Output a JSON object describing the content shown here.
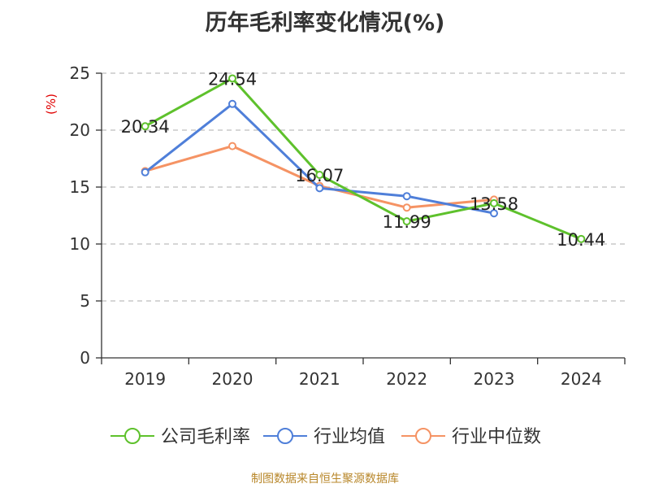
{
  "chart_data": {
    "type": "line",
    "title": "历年毛利率变化情况(%)",
    "ylabel": "(%)",
    "xlabel": "",
    "categories": [
      "2019",
      "2020",
      "2021",
      "2022",
      "2023",
      "2024"
    ],
    "ylim": [
      0,
      25
    ],
    "yticks": [
      0,
      5,
      10,
      15,
      20,
      25
    ],
    "grid": true,
    "legend_position": "bottom",
    "series": [
      {
        "name": "公司毛利率",
        "color": "#5ec12c",
        "values": [
          20.34,
          24.54,
          16.07,
          11.99,
          13.58,
          10.44
        ],
        "labels": [
          "20.34",
          "24.54",
          "16.07",
          "11.99",
          "13.58",
          "10.44"
        ]
      },
      {
        "name": "行业均值",
        "color": "#4f7fd9",
        "values": [
          16.3,
          22.3,
          14.9,
          14.2,
          12.7,
          null
        ]
      },
      {
        "name": "行业中位数",
        "color": "#f59364",
        "values": [
          16.4,
          18.6,
          15.1,
          13.2,
          13.9,
          null
        ]
      }
    ]
  },
  "source_note": "制图数据来自恒生聚源数据库"
}
